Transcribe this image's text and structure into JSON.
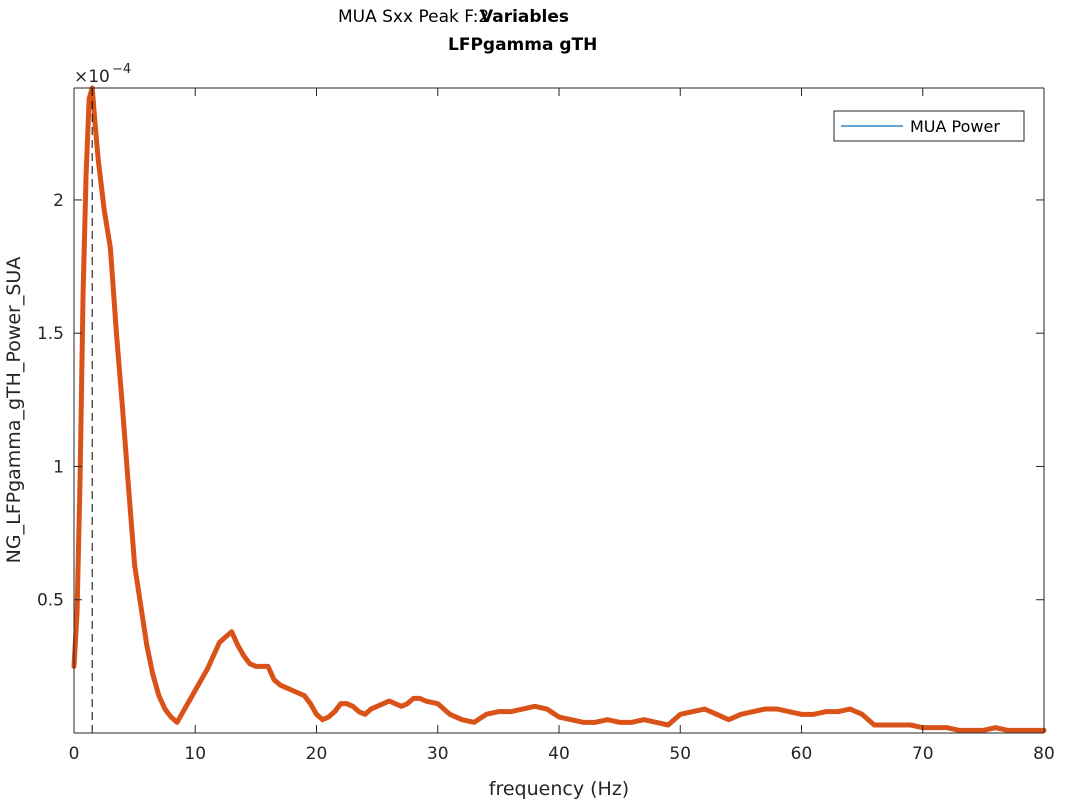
{
  "chart_data": {
    "type": "line",
    "title_lines": [
      {
        "text": "MUA Sxx Peak F:2",
        "bold": false
      },
      {
        "text": "Variables",
        "bold": true
      },
      {
        "text": "LFPgamma gTH",
        "bold": true
      }
    ],
    "xlabel": "frequency (Hz)",
    "ylabel": "NG_LFPgamma_gTH_Power_SUA",
    "y_exponent_label": "×10",
    "y_exponent_value": "−4",
    "xlim": [
      0,
      80
    ],
    "ylim": [
      0,
      0.000242
    ],
    "xticks": [
      0,
      10,
      20,
      30,
      40,
      50,
      60,
      70,
      80
    ],
    "xtick_labels": [
      "0",
      "10",
      "20",
      "30",
      "40",
      "50",
      "60",
      "70",
      "80"
    ],
    "yticks": [
      5e-05,
      0.0001,
      0.00015,
      0.0002
    ],
    "ytick_labels": [
      "0.5",
      "1",
      "1.5",
      "2"
    ],
    "grid": false,
    "legend": {
      "location": "top-right",
      "entries": [
        {
          "label": "MUA Power",
          "color": "#0072bd"
        }
      ]
    },
    "series": [
      {
        "color": "#d95319",
        "x": [
          0,
          0.25,
          0.5,
          0.75,
          1.0,
          1.25,
          1.5,
          1.75,
          2.0,
          2.5,
          3.0,
          3.5,
          4.0,
          4.5,
          5.0,
          5.5,
          6.0,
          6.5,
          7.0,
          7.5,
          8.0,
          8.5,
          9.0,
          9.5,
          10.0,
          10.5,
          11.0,
          11.5,
          12.0,
          12.5,
          13.0,
          13.5,
          14.0,
          14.5,
          15.0,
          15.5,
          16.0,
          16.5,
          17.0,
          17.5,
          18.0,
          18.5,
          19.0,
          19.5,
          20.0,
          20.5,
          21.0,
          21.5,
          22.0,
          22.5,
          23.0,
          23.5,
          24.0,
          24.5,
          25.0,
          25.5,
          26.0,
          26.5,
          27.0,
          27.5,
          28.0,
          28.5,
          29.0,
          30.0,
          31.0,
          32.0,
          33.0,
          34.0,
          35.0,
          36.0,
          37.0,
          38.0,
          39.0,
          40.0,
          41.0,
          42.0,
          43.0,
          44.0,
          45.0,
          46.0,
          47.0,
          48.0,
          49.0,
          50.0,
          51.0,
          52.0,
          53.0,
          54.0,
          55.0,
          56.0,
          57.0,
          58.0,
          59.0,
          60.0,
          61.0,
          62.0,
          63.0,
          64.0,
          65.0,
          66.0,
          67.0,
          68.0,
          69.0,
          70.0,
          71.0,
          72.0,
          73.0,
          74.0,
          75.0,
          76.0,
          77.0,
          78.0,
          79.0,
          80.0
        ],
        "y": [
          2.5e-05,
          4.5e-05,
          9.5e-05,
          0.000165,
          0.00021,
          0.000238,
          0.000242,
          0.000228,
          0.000215,
          0.000196,
          0.000182,
          0.00015,
          0.000122,
          9.2e-05,
          6.3e-05,
          4.8e-05,
          3.3e-05,
          2.2e-05,
          1.4e-05,
          9e-06,
          6e-06,
          4e-06,
          8e-06,
          1.2e-05,
          1.6e-05,
          2e-05,
          2.4e-05,
          2.9e-05,
          3.4e-05,
          3.6e-05,
          3.8e-05,
          3.3e-05,
          2.9e-05,
          2.6e-05,
          2.5e-05,
          2.5e-05,
          2.5e-05,
          2e-05,
          1.8e-05,
          1.7e-05,
          1.6e-05,
          1.5e-05,
          1.4e-05,
          1.1e-05,
          7e-06,
          5e-06,
          6e-06,
          8e-06,
          1.1e-05,
          1.1e-05,
          1e-05,
          8e-06,
          7e-06,
          9e-06,
          1e-05,
          1.1e-05,
          1.2e-05,
          1.1e-05,
          1e-05,
          1.1e-05,
          1.3e-05,
          1.3e-05,
          1.2e-05,
          1.1e-05,
          7e-06,
          5e-06,
          4e-06,
          7e-06,
          8e-06,
          8e-06,
          9e-06,
          1e-05,
          9e-06,
          6e-06,
          5e-06,
          4e-06,
          4e-06,
          5e-06,
          4e-06,
          4e-06,
          5e-06,
          4e-06,
          3e-06,
          7e-06,
          8e-06,
          9e-06,
          7e-06,
          5e-06,
          7e-06,
          8e-06,
          9e-06,
          9e-06,
          8e-06,
          7e-06,
          7e-06,
          8e-06,
          8e-06,
          9e-06,
          7e-06,
          3e-06,
          3e-06,
          3e-06,
          3e-06,
          2e-06,
          2e-06,
          2e-06,
          1e-06,
          1e-06,
          1e-06,
          2e-06,
          1e-06,
          1e-06,
          1e-06,
          1e-06
        ]
      }
    ],
    "peak_marker": {
      "x": 1.5,
      "style": "dashed",
      "color": "#000000"
    }
  }
}
